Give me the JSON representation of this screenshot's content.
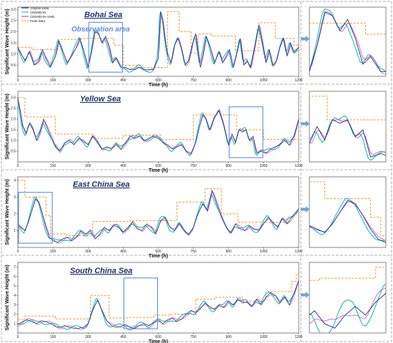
{
  "figure": {
    "observation_label": "Observation area",
    "legend": [
      "Original Data",
      "CEEMDAN",
      "CEEMDAN-VMD",
      "Peak Data"
    ],
    "xlabel": "Time (h)",
    "ylabel": "Significant Wave Height (m)"
  },
  "colors": {
    "original": "#1f2f8a",
    "ceemdan": "#2ec4b6",
    "ceemdan_vmd": "#d04bb8",
    "peak": "#f39a2c",
    "box": "#5b8ee0",
    "arrow": "#6f9fe8",
    "frame": "#999999"
  },
  "chart_data": [
    {
      "type": "line",
      "title": "Bohai Sea",
      "xlabel": "Time (h)",
      "ylabel": "Significant Wave Height (m)",
      "xlim": [
        0,
        1200
      ],
      "ylim": [
        0.0,
        3.1
      ],
      "xticks": [
        0,
        150,
        300,
        450,
        600,
        750,
        900,
        1050,
        1200
      ],
      "yticks": [
        0.5,
        1.0,
        1.5,
        2.0,
        2.5,
        3.0
      ],
      "ytick_labels": [
        "0.5",
        "1.0",
        "1.5",
        "2.0",
        "2.5",
        "3.0"
      ],
      "observation_window": [
        300,
        450
      ],
      "series": [
        {
          "name": "Original Data",
          "x": [
            0,
            15,
            30,
            50,
            70,
            90,
            105,
            120,
            140,
            160,
            175,
            190,
            210,
            230,
            250,
            265,
            280,
            300,
            315,
            330,
            345,
            360,
            375,
            390,
            405,
            420,
            440,
            460,
            480,
            500,
            520,
            540,
            560,
            580,
            600,
            610,
            620,
            630,
            640,
            655,
            670,
            685,
            700,
            715,
            730,
            750,
            760,
            770,
            780,
            790,
            805,
            820,
            840,
            860,
            875,
            890,
            905,
            920,
            935,
            950,
            965,
            980,
            995,
            1010,
            1030,
            1045,
            1060,
            1075,
            1090,
            1105,
            1120,
            1135,
            1150,
            1165,
            1180,
            1200
          ],
          "y": [
            1.3,
            1.0,
            0.7,
            1.1,
            0.5,
            0.7,
            1.2,
            0.8,
            0.4,
            0.9,
            1.6,
            1.2,
            0.6,
            0.9,
            1.3,
            1.7,
            1.2,
            0.4,
            1.1,
            2.0,
            1.9,
            1.5,
            1.8,
            1.3,
            0.6,
            0.8,
            0.4,
            0.4,
            0.3,
            0.3,
            0.4,
            0.3,
            0.3,
            0.3,
            0.8,
            2.9,
            2.5,
            1.6,
            1.0,
            0.6,
            1.4,
            1.7,
            1.2,
            0.5,
            0.7,
            1.6,
            1.9,
            1.1,
            0.4,
            0.9,
            1.8,
            1.4,
            0.6,
            1.1,
            0.6,
            0.9,
            1.2,
            0.4,
            1.0,
            1.7,
            0.5,
            0.7,
            0.4,
            1.2,
            2.3,
            1.5,
            0.6,
            1.2,
            0.5,
            0.7,
            1.3,
            1.7,
            0.9,
            1.5,
            1.1,
            1.3
          ]
        },
        {
          "name": "Peak Data",
          "x": [
            0,
            60,
            120,
            170,
            210,
            270,
            300,
            360,
            410,
            450,
            490,
            520,
            600,
            640,
            690,
            740,
            770,
            810,
            830,
            890,
            930,
            990,
            1030,
            1100,
            1150,
            1180,
            1200
          ],
          "y": [
            1.3,
            1.2,
            1.2,
            1.65,
            1.65,
            1.7,
            1.7,
            1.7,
            1.4,
            0.5,
            0.5,
            0.4,
            0.4,
            2.9,
            2.0,
            1.05,
            1.9,
            1.9,
            1.8,
            1.8,
            1.15,
            1.15,
            2.4,
            1.7,
            1.7,
            1.4,
            1.4
          ]
        }
      ]
    },
    {
      "type": "line",
      "title": "Yellow Sea",
      "xlabel": "Time (h)",
      "ylabel": "Significant Wave Height (m)",
      "xlim": [
        0,
        1200
      ],
      "ylim": [
        0.0,
        3.3
      ],
      "xticks": [
        0,
        150,
        300,
        450,
        600,
        750,
        900,
        1050,
        1200
      ],
      "yticks": [
        0.5,
        1.0,
        1.5,
        2.0,
        2.5,
        3.0
      ],
      "ytick_labels": [
        "0.5",
        "1.0",
        "1.5",
        "2.0",
        "2.5",
        "3.0"
      ],
      "observation_window": [
        900,
        1050
      ],
      "series": [
        {
          "name": "Original Data",
          "x": [
            0,
            10,
            20,
            35,
            50,
            65,
            80,
            95,
            110,
            125,
            140,
            160,
            180,
            200,
            220,
            240,
            260,
            280,
            300,
            320,
            340,
            360,
            380,
            400,
            420,
            440,
            460,
            480,
            500,
            520,
            540,
            560,
            580,
            600,
            620,
            640,
            660,
            680,
            700,
            720,
            740,
            760,
            775,
            790,
            805,
            820,
            840,
            860,
            880,
            900,
            915,
            930,
            945,
            960,
            975,
            990,
            1005,
            1020,
            1040,
            1060,
            1080,
            1100,
            1120,
            1140,
            1160,
            1180,
            1200
          ],
          "y": [
            3.0,
            2.4,
            1.7,
            1.3,
            1.8,
            1.5,
            1.0,
            1.4,
            2.0,
            1.6,
            1.2,
            0.7,
            0.5,
            0.9,
            1.0,
            0.8,
            1.1,
            1.0,
            0.8,
            1.2,
            0.9,
            0.6,
            0.7,
            0.6,
            0.8,
            0.6,
            0.9,
            1.2,
            1.1,
            1.2,
            1.0,
            1.1,
            1.2,
            1.1,
            0.9,
            0.8,
            0.6,
            0.7,
            0.8,
            0.5,
            0.4,
            0.9,
            1.6,
            2.2,
            2.0,
            1.5,
            2.1,
            2.4,
            1.7,
            0.8,
            1.3,
            0.9,
            1.5,
            1.4,
            1.5,
            1.0,
            1.2,
            0.4,
            0.5,
            0.4,
            0.6,
            0.7,
            0.8,
            1.0,
            0.8,
            1.2,
            2.0
          ]
        },
        {
          "name": "Peak Data",
          "x": [
            0,
            20,
            30,
            80,
            110,
            160,
            180,
            290,
            320,
            420,
            450,
            590,
            610,
            740,
            750,
            900,
            935,
            1010,
            1050,
            1180,
            1200
          ],
          "y": [
            3.0,
            3.0,
            2.1,
            2.1,
            2.1,
            1.3,
            1.3,
            1.3,
            1.1,
            1.1,
            1.25,
            1.25,
            1.05,
            1.05,
            2.2,
            2.2,
            1.5,
            1.5,
            1.05,
            1.05,
            2.0
          ]
        }
      ]
    },
    {
      "type": "line",
      "title": "East China Sea",
      "xlabel": "Time (h)",
      "ylabel": "Significant Wave Height (m)",
      "xlim": [
        0,
        1200
      ],
      "ylim": [
        0.0,
        4.2
      ],
      "xticks": [
        0,
        150,
        300,
        450,
        600,
        750,
        900,
        1050,
        1200
      ],
      "yticks": [
        1,
        2,
        3,
        4
      ],
      "ytick_labels": [
        "1",
        "2",
        "3",
        "4"
      ],
      "observation_window": [
        0,
        150
      ],
      "series": [
        {
          "name": "Original Data",
          "x": [
            0,
            15,
            30,
            45,
            60,
            75,
            90,
            105,
            120,
            135,
            150,
            170,
            190,
            210,
            230,
            250,
            270,
            290,
            310,
            330,
            350,
            370,
            390,
            410,
            430,
            450,
            470,
            490,
            510,
            530,
            550,
            570,
            590,
            610,
            630,
            650,
            670,
            690,
            710,
            730,
            750,
            770,
            790,
            810,
            830,
            850,
            870,
            890,
            910,
            930,
            950,
            970,
            990,
            1010,
            1030,
            1050,
            1070,
            1090,
            1110,
            1130,
            1150,
            1170,
            1200
          ],
          "y": [
            1.4,
            1.2,
            1.0,
            1.5,
            2.2,
            2.9,
            2.7,
            2.0,
            1.2,
            0.6,
            0.4,
            0.3,
            0.5,
            0.6,
            0.4,
            0.6,
            1.0,
            0.8,
            1.0,
            0.5,
            0.8,
            1.2,
            1.0,
            1.3,
            1.2,
            0.9,
            1.2,
            1.5,
            1.1,
            1.0,
            1.4,
            1.2,
            0.8,
            1.6,
            1.8,
            1.2,
            1.0,
            1.4,
            1.0,
            0.8,
            1.2,
            2.0,
            2.6,
            2.2,
            3.4,
            2.6,
            1.8,
            1.2,
            0.9,
            1.4,
            1.1,
            1.0,
            1.3,
            1.1,
            1.0,
            1.4,
            1.8,
            1.5,
            1.2,
            1.7,
            1.4,
            1.8,
            2.3
          ]
        },
        {
          "name": "Peak Data",
          "x": [
            0,
            20,
            30,
            70,
            100,
            120,
            140,
            190,
            210,
            300,
            320,
            440,
            480,
            660,
            680,
            780,
            800,
            850,
            870,
            920,
            940,
            1110,
            1150,
            1180,
            1200
          ],
          "y": [
            4.0,
            4.0,
            3.0,
            3.0,
            3.0,
            1.9,
            0.8,
            0.8,
            0.7,
            0.7,
            1.55,
            1.55,
            1.6,
            1.6,
            2.7,
            2.7,
            3.5,
            3.5,
            2.0,
            2.0,
            1.5,
            1.5,
            1.8,
            2.0,
            2.6
          ]
        }
      ]
    },
    {
      "type": "line",
      "title": "South China Sea",
      "xlabel": "Time (h)",
      "ylabel": "Significant Wave Height (m)",
      "xlim": [
        0,
        1200
      ],
      "ylim": [
        0.0,
        7.5
      ],
      "xticks": [
        0,
        150,
        300,
        450,
        600,
        750,
        900,
        1050,
        1200
      ],
      "yticks": [
        1,
        2,
        3,
        4,
        5,
        6,
        7
      ],
      "ytick_labels": [
        "1",
        "2",
        "3",
        "4",
        "5",
        "6",
        "7"
      ],
      "observation_window": [
        450,
        600
      ],
      "series": [
        {
          "name": "Original Data",
          "x": [
            0,
            20,
            40,
            60,
            80,
            100,
            120,
            140,
            160,
            180,
            200,
            220,
            240,
            260,
            280,
            300,
            320,
            340,
            360,
            380,
            400,
            420,
            440,
            460,
            480,
            500,
            520,
            540,
            560,
            580,
            600,
            620,
            640,
            660,
            680,
            700,
            720,
            740,
            760,
            780,
            800,
            820,
            840,
            860,
            880,
            900,
            920,
            940,
            960,
            980,
            1000,
            1020,
            1040,
            1060,
            1080,
            1100,
            1120,
            1140,
            1160,
            1180,
            1200
          ],
          "y": [
            0.9,
            1.2,
            1.4,
            1.2,
            1.0,
            1.3,
            1.2,
            1.0,
            0.7,
            0.6,
            0.8,
            0.6,
            0.5,
            0.5,
            0.6,
            1.0,
            2.4,
            3.5,
            2.4,
            1.3,
            0.8,
            0.6,
            0.7,
            0.9,
            0.6,
            0.5,
            0.8,
            1.0,
            0.8,
            1.1,
            1.3,
            1.0,
            1.4,
            1.6,
            1.2,
            1.5,
            2.0,
            2.4,
            2.1,
            2.6,
            3.2,
            2.8,
            2.5,
            2.9,
            2.7,
            3.4,
            3.0,
            3.6,
            3.2,
            3.3,
            2.9,
            3.6,
            3.0,
            3.8,
            4.3,
            4.0,
            3.2,
            3.8,
            3.0,
            4.2,
            5.6
          ]
        },
        {
          "name": "Peak Data",
          "x": [
            0,
            20,
            30,
            140,
            160,
            300,
            310,
            370,
            390,
            450,
            470,
            560,
            580,
            630,
            650,
            720,
            760,
            800,
            840,
            940,
            960,
            1040,
            1060,
            1150,
            1170,
            1190,
            1200
          ],
          "y": [
            1.4,
            1.4,
            1.8,
            1.8,
            1.5,
            1.5,
            4.0,
            4.0,
            1.6,
            1.6,
            1.65,
            1.65,
            1.9,
            1.9,
            2.0,
            2.0,
            3.6,
            3.6,
            3.8,
            3.8,
            3.4,
            3.4,
            4.4,
            4.4,
            5.5,
            6.3,
            7.0
          ]
        }
      ]
    }
  ]
}
